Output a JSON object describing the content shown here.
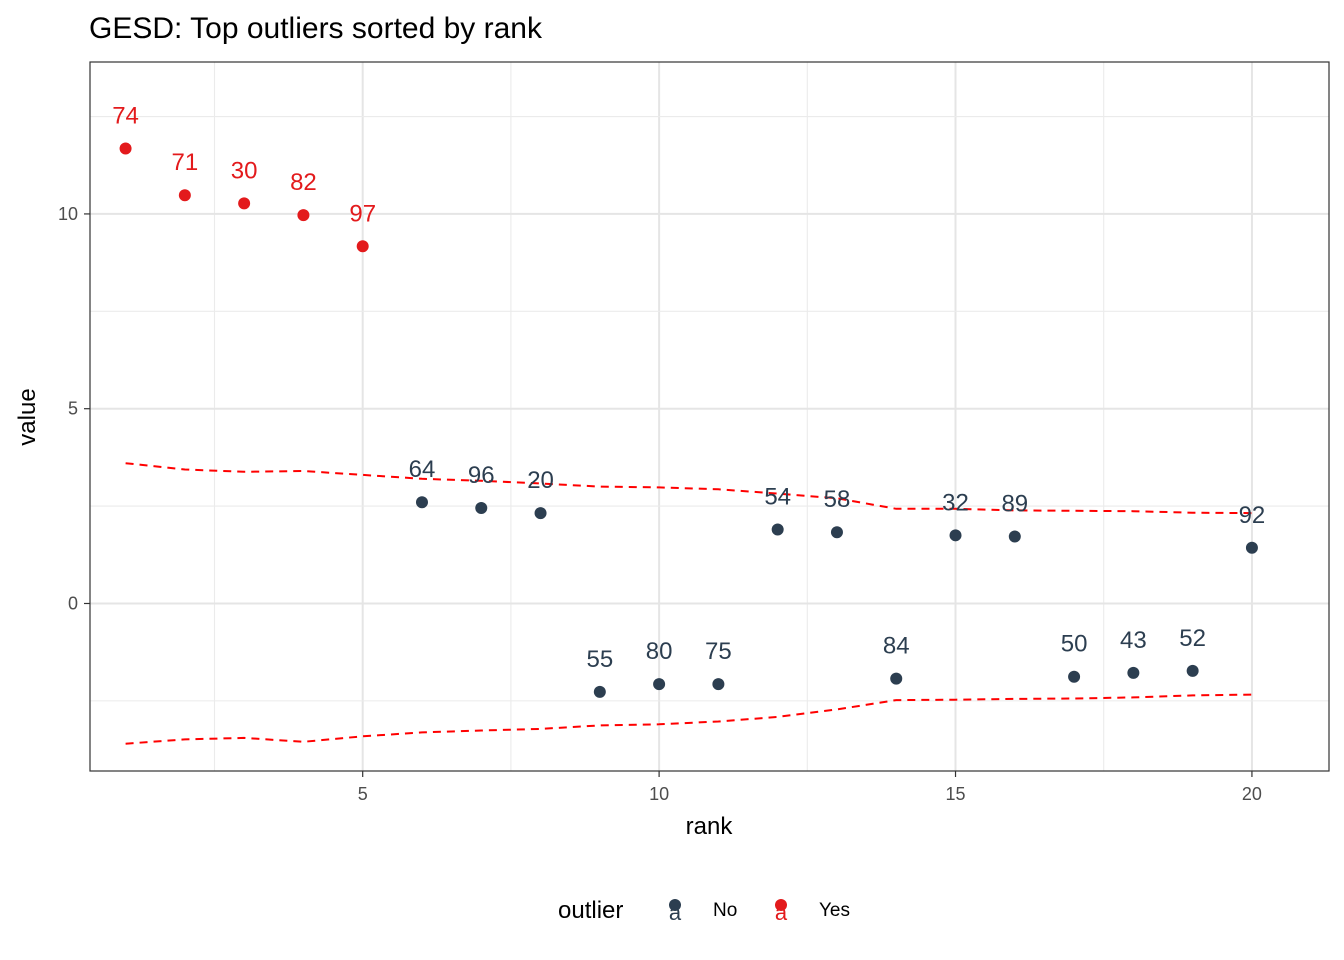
{
  "chart_data": {
    "type": "scatter",
    "title": "GESD: Top outliers sorted by rank",
    "xlabel": "rank",
    "ylabel": "value",
    "xlim": [
      0.4,
      21.3
    ],
    "ylim": [
      -4.3,
      13.9
    ],
    "x_ticks": [
      5,
      10,
      15,
      20
    ],
    "y_ticks": [
      0,
      5,
      10
    ],
    "grid": true,
    "legend": {
      "title": "outlier",
      "position": "bottom",
      "key_letter": "a",
      "entries": [
        {
          "label": "No",
          "color": "#2c3e50"
        },
        {
          "label": "Yes",
          "color": "#e31a1c"
        }
      ]
    },
    "colors": {
      "No": "#2c3e50",
      "Yes": "#e31a1c",
      "limit": "#ff0000"
    },
    "points": [
      {
        "rank": 1,
        "value": 11.68,
        "label": "74",
        "outlier": "Yes"
      },
      {
        "rank": 2,
        "value": 10.48,
        "label": "71",
        "outlier": "Yes"
      },
      {
        "rank": 3,
        "value": 10.27,
        "label": "30",
        "outlier": "Yes"
      },
      {
        "rank": 4,
        "value": 9.97,
        "label": "82",
        "outlier": "Yes"
      },
      {
        "rank": 5,
        "value": 9.17,
        "label": "97",
        "outlier": "Yes"
      },
      {
        "rank": 6,
        "value": 2.6,
        "label": "64",
        "outlier": "No"
      },
      {
        "rank": 7,
        "value": 2.45,
        "label": "96",
        "outlier": "No"
      },
      {
        "rank": 8,
        "value": 2.32,
        "label": "20",
        "outlier": "No"
      },
      {
        "rank": 9,
        "value": -2.27,
        "label": "55",
        "outlier": "No"
      },
      {
        "rank": 10,
        "value": -2.07,
        "label": "80",
        "outlier": "No"
      },
      {
        "rank": 11,
        "value": -2.07,
        "label": "75",
        "outlier": "No"
      },
      {
        "rank": 12,
        "value": 1.9,
        "label": "54",
        "outlier": "No"
      },
      {
        "rank": 13,
        "value": 1.83,
        "label": "58",
        "outlier": "No"
      },
      {
        "rank": 14,
        "value": -1.93,
        "label": "84",
        "outlier": "No"
      },
      {
        "rank": 15,
        "value": 1.75,
        "label": "32",
        "outlier": "No"
      },
      {
        "rank": 16,
        "value": 1.72,
        "label": "89",
        "outlier": "No"
      },
      {
        "rank": 17,
        "value": -1.88,
        "label": "50",
        "outlier": "No"
      },
      {
        "rank": 18,
        "value": -1.78,
        "label": "43",
        "outlier": "No"
      },
      {
        "rank": 19,
        "value": -1.73,
        "label": "52",
        "outlier": "No"
      },
      {
        "rank": 20,
        "value": 1.43,
        "label": "92",
        "outlier": "No"
      }
    ],
    "limits": {
      "x": [
        1,
        2,
        3,
        4,
        5,
        6,
        7,
        8,
        9,
        10,
        11,
        12,
        13,
        14,
        15,
        16,
        17,
        18,
        19,
        20
      ],
      "upper": [
        3.6,
        3.44,
        3.38,
        3.4,
        3.3,
        3.2,
        3.15,
        3.08,
        3.0,
        2.98,
        2.93,
        2.82,
        2.7,
        2.43,
        2.43,
        2.39,
        2.38,
        2.37,
        2.33,
        2.32
      ],
      "lower": [
        -3.6,
        -3.49,
        -3.45,
        -3.55,
        -3.41,
        -3.31,
        -3.26,
        -3.22,
        -3.13,
        -3.1,
        -3.03,
        -2.91,
        -2.72,
        -2.48,
        -2.47,
        -2.45,
        -2.44,
        -2.41,
        -2.36,
        -2.34
      ]
    }
  }
}
